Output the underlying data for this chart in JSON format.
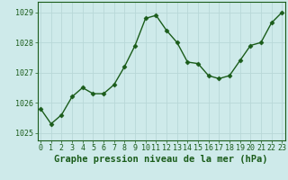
{
  "x": [
    0,
    1,
    2,
    3,
    4,
    5,
    6,
    7,
    8,
    9,
    10,
    11,
    12,
    13,
    14,
    15,
    16,
    17,
    18,
    19,
    20,
    21,
    22,
    23
  ],
  "y": [
    1025.8,
    1025.3,
    1025.6,
    1026.2,
    1026.5,
    1026.3,
    1026.3,
    1026.6,
    1027.2,
    1027.9,
    1028.8,
    1028.9,
    1028.4,
    1028.0,
    1027.35,
    1027.3,
    1026.9,
    1026.8,
    1026.9,
    1027.4,
    1027.9,
    1028.0,
    1028.65,
    1029.0
  ],
  "line_color": "#1a5c1a",
  "marker": "D",
  "marker_size": 2.5,
  "bg_color": "#ceeaea",
  "grid_color": "#b8d8d8",
  "ylabel_ticks": [
    1025,
    1026,
    1027,
    1028,
    1029
  ],
  "xlabel_ticks": [
    0,
    1,
    2,
    3,
    4,
    5,
    6,
    7,
    8,
    9,
    10,
    11,
    12,
    13,
    14,
    15,
    16,
    17,
    18,
    19,
    20,
    21,
    22,
    23
  ],
  "ylim": [
    1024.75,
    1029.35
  ],
  "xlim": [
    -0.3,
    23.3
  ],
  "xlabel": "Graphe pression niveau de la mer (hPa)",
  "xlabel_fontsize": 7.5,
  "tick_fontsize": 6,
  "axis_color": "#1a5c1a"
}
